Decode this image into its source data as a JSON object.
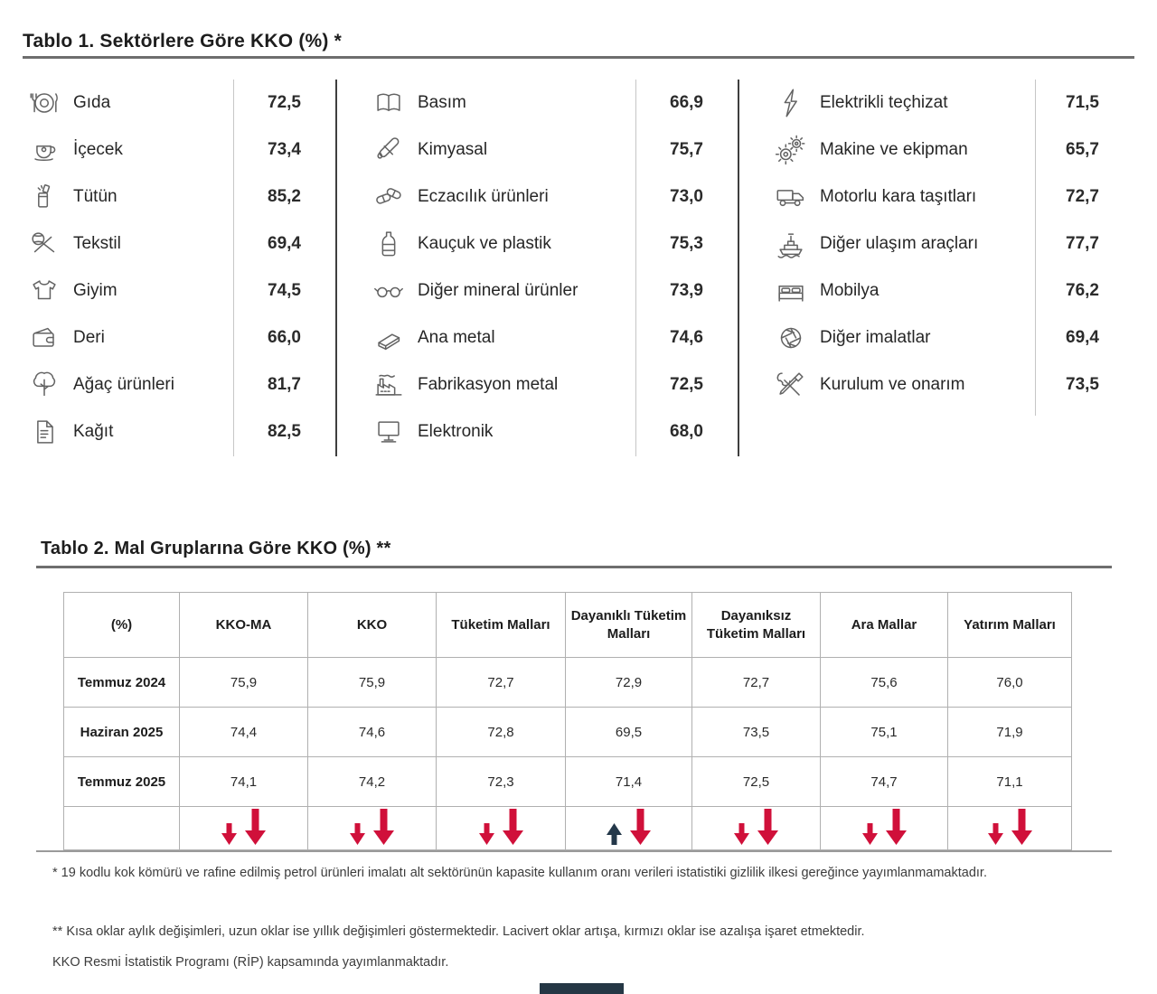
{
  "tablo1": {
    "title": "Tablo 1. Sektörlere Göre KKO (%) *",
    "columns": [
      {
        "rows": [
          {
            "icon": "food-plate-icon",
            "label": "Gıda",
            "value": "72,5"
          },
          {
            "icon": "beverage-cup-icon",
            "label": "İçecek",
            "value": "73,4"
          },
          {
            "icon": "tobacco-lighter-icon",
            "label": "Tütün",
            "value": "85,2"
          },
          {
            "icon": "textile-yarn-icon",
            "label": "Tekstil",
            "value": "69,4"
          },
          {
            "icon": "apparel-icon",
            "label": "Giyim",
            "value": "74,5"
          },
          {
            "icon": "leather-wallet-icon",
            "label": "Deri",
            "value": "66,0"
          },
          {
            "icon": "wood-tree-icon",
            "label": "Ağaç ürünleri",
            "value": "81,7"
          },
          {
            "icon": "paper-document-icon",
            "label": "Kağıt",
            "value": "82,5"
          }
        ]
      },
      {
        "rows": [
          {
            "icon": "open-book-icon",
            "label": "Basım",
            "value": "66,9"
          },
          {
            "icon": "chemical-tube-icon",
            "label": "Kimyasal",
            "value": "75,7"
          },
          {
            "icon": "pharma-pills-icon",
            "label": "Eczacılık ürünleri",
            "value": "73,0"
          },
          {
            "icon": "plastic-bottle-icon",
            "label": "Kauçuk ve plastik",
            "value": "75,3"
          },
          {
            "icon": "glasses-icon",
            "label": "Diğer mineral ürünler",
            "value": "73,9"
          },
          {
            "icon": "metal-beam-icon",
            "label": "Ana metal",
            "value": "74,6"
          },
          {
            "icon": "factory-icon",
            "label": "Fabrikasyon metal",
            "value": "72,5"
          },
          {
            "icon": "monitor-icon",
            "label": "Elektronik",
            "value": "68,0"
          }
        ]
      },
      {
        "rows": [
          {
            "icon": "lightning-bolt-icon",
            "label": "Elektrikli teçhizat",
            "value": "71,5"
          },
          {
            "icon": "gears-icon",
            "label": "Makine ve ekipman",
            "value": "65,7"
          },
          {
            "icon": "truck-icon",
            "label": "Motorlu kara taşıtları",
            "value": "72,7"
          },
          {
            "icon": "ship-icon",
            "label": "Diğer ulaşım araçları",
            "value": "77,7"
          },
          {
            "icon": "bed-icon",
            "label": "Mobilya",
            "value": "76,2"
          },
          {
            "icon": "aperture-icon",
            "label": "Diğer imalatlar",
            "value": "69,4"
          },
          {
            "icon": "repair-tools-icon",
            "label": "Kurulum ve onarım",
            "value": "73,5"
          }
        ]
      }
    ]
  },
  "tablo2": {
    "title": "Tablo 2. Mal Gruplarına Göre KKO (%) **",
    "headers": [
      "(%)",
      "KKO-MA",
      "KKO",
      "Tüketim Malları",
      "Dayanıklı Tüketim Malları",
      "Dayanıksız Tüketim Malları",
      "Ara Mallar",
      "Yatırım Malları"
    ],
    "rows": [
      {
        "label": "Temmuz 2024",
        "values": [
          "75,9",
          "75,9",
          "72,7",
          "72,9",
          "72,7",
          "75,6",
          "76,0"
        ]
      },
      {
        "label": "Haziran 2025",
        "values": [
          "74,4",
          "74,6",
          "72,8",
          "69,5",
          "73,5",
          "75,1",
          "71,9"
        ]
      },
      {
        "label": "Temmuz 2025",
        "values": [
          "74,1",
          "74,2",
          "72,3",
          "71,4",
          "72,5",
          "74,7",
          "71,1"
        ]
      }
    ],
    "change_arrows": [
      {
        "group": "KKO-MA",
        "monthly": "down",
        "yearly": "down"
      },
      {
        "group": "KKO",
        "monthly": "down",
        "yearly": "down"
      },
      {
        "group": "Tüketim Malları",
        "monthly": "down",
        "yearly": "down"
      },
      {
        "group": "Dayanıklı Tüketim Malları",
        "monthly": "up",
        "yearly": "down"
      },
      {
        "group": "Dayanıksız Tüketim Malları",
        "monthly": "down",
        "yearly": "down"
      },
      {
        "group": "Ara Mallar",
        "monthly": "down",
        "yearly": "down"
      },
      {
        "group": "Yatırım Malları",
        "monthly": "down",
        "yearly": "down"
      }
    ],
    "arrow_colors": {
      "increase": "#24384A",
      "decrease": "#D0103A"
    }
  },
  "footnotes": {
    "note1": "* 19 kodlu kok kömürü ve rafine edilmiş petrol ürünleri imalatı alt sektörünün kapasite kullanım oranı verileri istatistiki gizlilik ilkesi gereğince yayımlanmamaktadır.",
    "note2": "** Kısa oklar aylık değişimleri, uzun oklar ise yıllık değişimleri göstermektedir. Lacivert oklar artışa, kırmızı oklar ise azalışa işaret etmektedir.",
    "note3": "KKO Resmi İstatistik Programı (RİP) kapsamında yayımlanmaktadır."
  }
}
